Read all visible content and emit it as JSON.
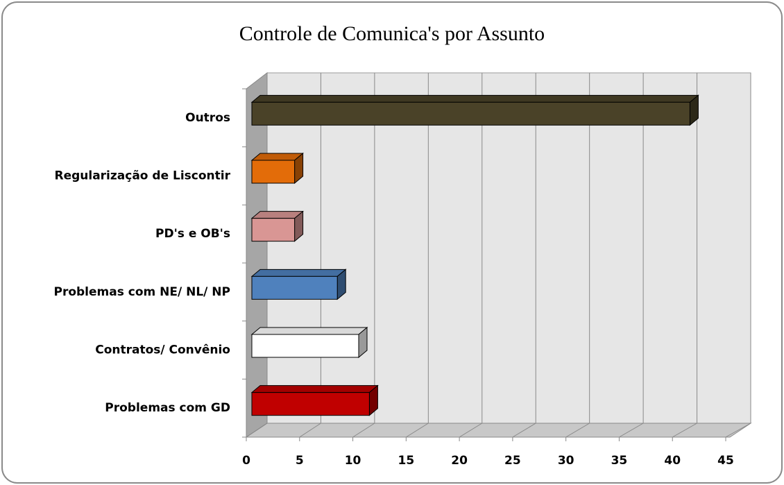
{
  "chart_data": {
    "type": "bar",
    "orientation": "horizontal",
    "title": "Controle de Comunica's por Assunto",
    "categories": [
      "Outros",
      "Regularização de Liscontir",
      "PD's e OB's",
      "Problemas com NE/ NL/ NP",
      "Contratos/ Convênio",
      "Problemas com GD"
    ],
    "values": [
      41,
      4,
      4,
      8,
      10,
      11
    ],
    "colors": [
      "#4a4228",
      "#e36c09",
      "#d99694",
      "#4f81bd",
      "#ffffff",
      "#c00000"
    ],
    "xlim": [
      0,
      45
    ],
    "xticks": [
      0,
      5,
      10,
      15,
      20,
      25,
      30,
      35,
      40,
      45
    ],
    "grid": true
  }
}
